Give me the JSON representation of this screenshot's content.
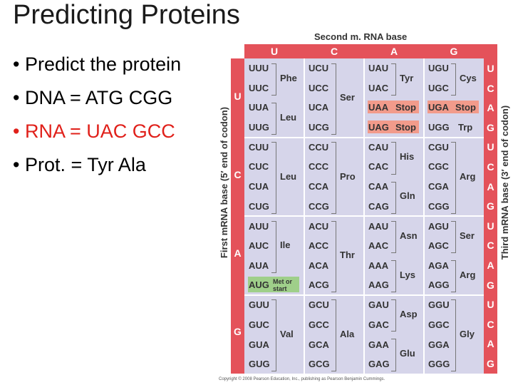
{
  "slide": {
    "title": "Predicting Proteins",
    "bullets": [
      {
        "bullet": "•",
        "text": "Predict the protein",
        "color": "#000000"
      },
      {
        "bullet": "•",
        "text": "DNA = ATG CGG",
        "color": "#000000"
      },
      {
        "bullet": "•",
        "text": "RNA = UAC GCC",
        "color": "#e0201a"
      },
      {
        "bullet": "•",
        "text": "Prot. = Tyr   Ala",
        "color": "#000000"
      }
    ]
  },
  "codon_table": {
    "title": "Second m. RNA base",
    "left_axis_label": "First mRNA base  (5′ end of codon)",
    "right_axis_label": "Third mRNA base  (3′ end of codon)",
    "second_bases": [
      "U",
      "C",
      "A",
      "G"
    ],
    "first_bases": [
      "U",
      "C",
      "A",
      "G"
    ],
    "third_bases": [
      "U",
      "C",
      "A",
      "G",
      "U",
      "C",
      "A",
      "G",
      "U",
      "C",
      "A",
      "G",
      "U",
      "C",
      "A",
      "G"
    ],
    "codons": [
      [
        "UUU",
        "UCU",
        "UAU",
        "UGU"
      ],
      [
        "UUC",
        "UCC",
        "UAC",
        "UGC"
      ],
      [
        "UUA",
        "UCA",
        "UAA",
        "UGA"
      ],
      [
        "UUG",
        "UCG",
        "UAG",
        "UGG"
      ],
      [
        "CUU",
        "CCU",
        "CAU",
        "CGU"
      ],
      [
        "CUC",
        "CCC",
        "CAC",
        "CGC"
      ],
      [
        "CUA",
        "CCA",
        "CAA",
        "CGA"
      ],
      [
        "CUG",
        "CCG",
        "CAG",
        "CGG"
      ],
      [
        "AUU",
        "ACU",
        "AAU",
        "AGU"
      ],
      [
        "AUC",
        "ACC",
        "AAC",
        "AGC"
      ],
      [
        "AUA",
        "ACA",
        "AAA",
        "AGA"
      ],
      [
        "AUG",
        "ACG",
        "AAG",
        "AGG"
      ],
      [
        "GUU",
        "GCU",
        "GAU",
        "GGU"
      ],
      [
        "GUC",
        "GCC",
        "GAC",
        "GGC"
      ],
      [
        "GUA",
        "GCA",
        "GAA",
        "GGA"
      ],
      [
        "GUG",
        "GCG",
        "GAG",
        "GGG"
      ]
    ],
    "amino_acids": {
      "phe": "Phe",
      "leu_u": "Leu",
      "ser_u": "Ser",
      "tyr": "Tyr",
      "stop1": "Stop",
      "stop2": "Stop",
      "cys": "Cys",
      "stop3": "Stop",
      "trp": "Trp",
      "leu_c": "Leu",
      "pro": "Pro",
      "his": "His",
      "gln": "Gln",
      "arg_c": "Arg",
      "ile": "Ile",
      "met_note": "Met or start",
      "thr": "Thr",
      "asn": "Asn",
      "lys": "Lys",
      "ser_a": "Ser",
      "arg_a": "Arg",
      "val": "Val",
      "ala": "Ala",
      "asp": "Asp",
      "glu": "Glu",
      "gly": "Gly"
    },
    "colors": {
      "header": "#e4525a",
      "cell_bg": "#d6d5ea",
      "stop": "#f29b8b",
      "start": "#9fcf8a"
    },
    "copyright": "Copyright © 2008 Pearson Education, Inc., publishing as Pearson Benjamin Cummings."
  }
}
